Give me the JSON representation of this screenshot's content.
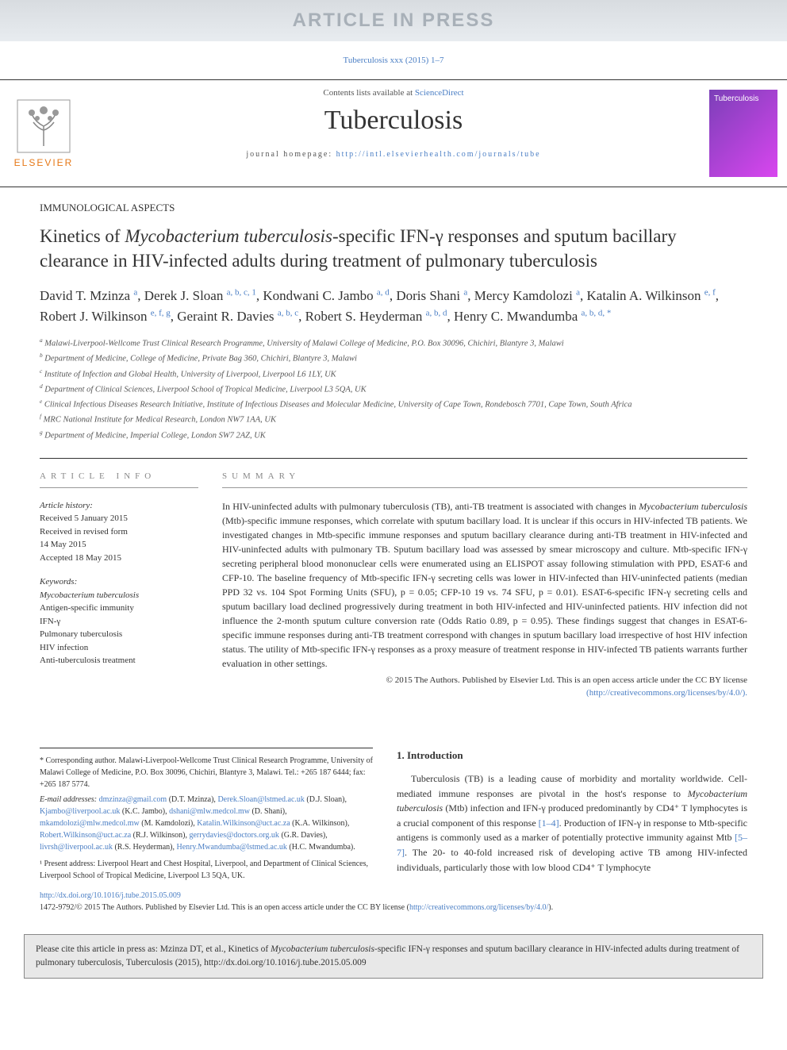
{
  "banner": "ARTICLE IN PRESS",
  "topCitation": "Tuberculosis xxx (2015) 1–7",
  "header": {
    "contentsPrefix": "Contents lists available at ",
    "contentsLink": "ScienceDirect",
    "journal": "Tuberculosis",
    "homepagePrefix": "journal homepage: ",
    "homepageUrl": "http://intl.elsevierhealth.com/journals/tube",
    "publisher": "ELSEVIER",
    "coverTitle": "Tuberculosis"
  },
  "sectionLabel": "IMMUNOLOGICAL ASPECTS",
  "title": "Kinetics of Mycobacterium tuberculosis-specific IFN-γ responses and sputum bacillary clearance in HIV-infected adults during treatment of pulmonary tuberculosis",
  "titleItalic": "Mycobacterium tuberculosis",
  "authors": [
    {
      "name": "David T. Mzinza",
      "sup": "a"
    },
    {
      "name": "Derek J. Sloan",
      "sup": "a, b, c, 1"
    },
    {
      "name": "Kondwani C. Jambo",
      "sup": "a, d"
    },
    {
      "name": "Doris Shani",
      "sup": "a"
    },
    {
      "name": "Mercy Kamdolozi",
      "sup": "a"
    },
    {
      "name": "Katalin A. Wilkinson",
      "sup": "e, f"
    },
    {
      "name": "Robert J. Wilkinson",
      "sup": "e, f, g"
    },
    {
      "name": "Geraint R. Davies",
      "sup": "a, b, c"
    },
    {
      "name": "Robert S. Heyderman",
      "sup": "a, b, d"
    },
    {
      "name": "Henry C. Mwandumba",
      "sup": "a, b, d, *"
    }
  ],
  "affiliations": [
    {
      "k": "a",
      "t": "Malawi-Liverpool-Wellcome Trust Clinical Research Programme, University of Malawi College of Medicine, P.O. Box 30096, Chichiri, Blantyre 3, Malawi"
    },
    {
      "k": "b",
      "t": "Department of Medicine, College of Medicine, Private Bag 360, Chichiri, Blantyre 3, Malawi"
    },
    {
      "k": "c",
      "t": "Institute of Infection and Global Health, University of Liverpool, Liverpool L6 1LY, UK"
    },
    {
      "k": "d",
      "t": "Department of Clinical Sciences, Liverpool School of Tropical Medicine, Liverpool L3 5QA, UK"
    },
    {
      "k": "e",
      "t": "Clinical Infectious Diseases Research Initiative, Institute of Infectious Diseases and Molecular Medicine, University of Cape Town, Rondebosch 7701, Cape Town, South Africa"
    },
    {
      "k": "f",
      "t": "MRC National Institute for Medical Research, London NW7 1AA, UK"
    },
    {
      "k": "g",
      "t": "Department of Medicine, Imperial College, London SW7 2AZ, UK"
    }
  ],
  "articleInfo": {
    "heading": "ARTICLE INFO",
    "historyLabel": "Article history:",
    "history": [
      "Received 5 January 2015",
      "Received in revised form",
      "14 May 2015",
      "Accepted 18 May 2015"
    ],
    "keywordsLabel": "Keywords:",
    "keywords": [
      "Mycobacterium tuberculosis",
      "Antigen-specific immunity",
      "IFN-γ",
      "Pulmonary tuberculosis",
      "HIV infection",
      "Anti-tuberculosis treatment"
    ]
  },
  "summary": {
    "heading": "SUMMARY",
    "text": "In HIV-uninfected adults with pulmonary tuberculosis (TB), anti-TB treatment is associated with changes in Mycobacterium tuberculosis (Mtb)-specific immune responses, which correlate with sputum bacillary load. It is unclear if this occurs in HIV-infected TB patients. We investigated changes in Mtb-specific immune responses and sputum bacillary clearance during anti-TB treatment in HIV-infected and HIV-uninfected adults with pulmonary TB. Sputum bacillary load was assessed by smear microscopy and culture. Mtb-specific IFN-γ secreting peripheral blood mononuclear cells were enumerated using an ELISPOT assay following stimulation with PPD, ESAT-6 and CFP-10. The baseline frequency of Mtb-specific IFN-γ secreting cells was lower in HIV-infected than HIV-uninfected patients (median PPD 32 vs. 104 Spot Forming Units (SFU), p = 0.05; CFP-10 19 vs. 74 SFU, p = 0.01). ESAT-6-specific IFN-γ secreting cells and sputum bacillary load declined progressively during treatment in both HIV-infected and HIV-uninfected patients. HIV infection did not influence the 2-month sputum culture conversion rate (Odds Ratio 0.89, p = 0.95). These findings suggest that changes in ESAT-6-specific immune responses during anti-TB treatment correspond with changes in sputum bacillary load irrespective of host HIV infection status. The utility of Mtb-specific IFN-γ responses as a proxy measure of treatment response in HIV-infected TB patients warrants further evaluation in other settings.",
    "copyright": "© 2015 The Authors. Published by Elsevier Ltd. This is an open access article under the CC BY license",
    "licenseUrl": "(http://creativecommons.org/licenses/by/4.0/)."
  },
  "corresponding": {
    "star": "* Corresponding author. Malawi-Liverpool-Wellcome Trust Clinical Research Programme, University of Malawi College of Medicine, P.O. Box 30096, Chichiri, Blantyre 3, Malawi. Tel.: +265 187 6444; fax: +265 187 5774.",
    "emailLabel": "E-mail addresses:",
    "emails": [
      {
        "e": "dmzinza@gmail.com",
        "n": "(D.T. Mzinza)"
      },
      {
        "e": "Derek.Sloan@lstmed.ac.uk",
        "n": "(D.J. Sloan)"
      },
      {
        "e": "Kjambo@liverpool.ac.uk",
        "n": "(K.C. Jambo)"
      },
      {
        "e": "dshani@mlw.medcol.mw",
        "n": "(D. Shani)"
      },
      {
        "e": "mkamdolozi@mlw.medcol.mw",
        "n": "(M. Kamdolozi)"
      },
      {
        "e": "Katalin.Wilkinson@uct.ac.za",
        "n": "(K.A. Wilkinson)"
      },
      {
        "e": "Robert.Wilkinson@uct.ac.za",
        "n": "(R.J. Wilkinson)"
      },
      {
        "e": "gerrydavies@doctors.org.uk",
        "n": "(G.R. Davies)"
      },
      {
        "e": "livrsh@liverpool.ac.uk",
        "n": "(R.S. Heyderman)"
      },
      {
        "e": "Henry.Mwandumba@lstmed.ac.uk",
        "n": "(H.C. Mwandumba)"
      }
    ],
    "note1": "¹ Present address: Liverpool Heart and Chest Hospital, Liverpool, and Department of Clinical Sciences, Liverpool School of Tropical Medicine, Liverpool L3 5QA, UK."
  },
  "intro": {
    "heading": "1. Introduction",
    "text": "Tuberculosis (TB) is a leading cause of morbidity and mortality worldwide. Cell-mediated immune responses are pivotal in the host's response to Mycobacterium tuberculosis (Mtb) infection and IFN-γ produced predominantly by CD4⁺ T lymphocytes is a crucial component of this response [1–4]. Production of IFN-γ in response to Mtb-specific antigens is commonly used as a marker of potentially protective immunity against Mtb [5–7]. The 20- to 40-fold increased risk of developing active TB among HIV-infected individuals, particularly those with low blood CD4⁺ T lymphocyte",
    "refs": {
      "r1": "[1–4]",
      "r2": "[5–7]"
    }
  },
  "footer": {
    "doi": "http://dx.doi.org/10.1016/j.tube.2015.05.009",
    "issn": "1472-9792/© 2015 The Authors. Published by Elsevier Ltd. This is an open access article under the CC BY license (",
    "licenseUrl": "http://creativecommons.org/licenses/by/4.0/",
    "issnEnd": ")."
  },
  "citeBox": "Please cite this article in press as: Mzinza DT, et al., Kinetics of Mycobacterium tuberculosis-specific IFN-γ responses and sputum bacillary clearance in HIV-infected adults during treatment of pulmonary tuberculosis, Tuberculosis (2015), http://dx.doi.org/10.1016/j.tube.2015.05.009"
}
